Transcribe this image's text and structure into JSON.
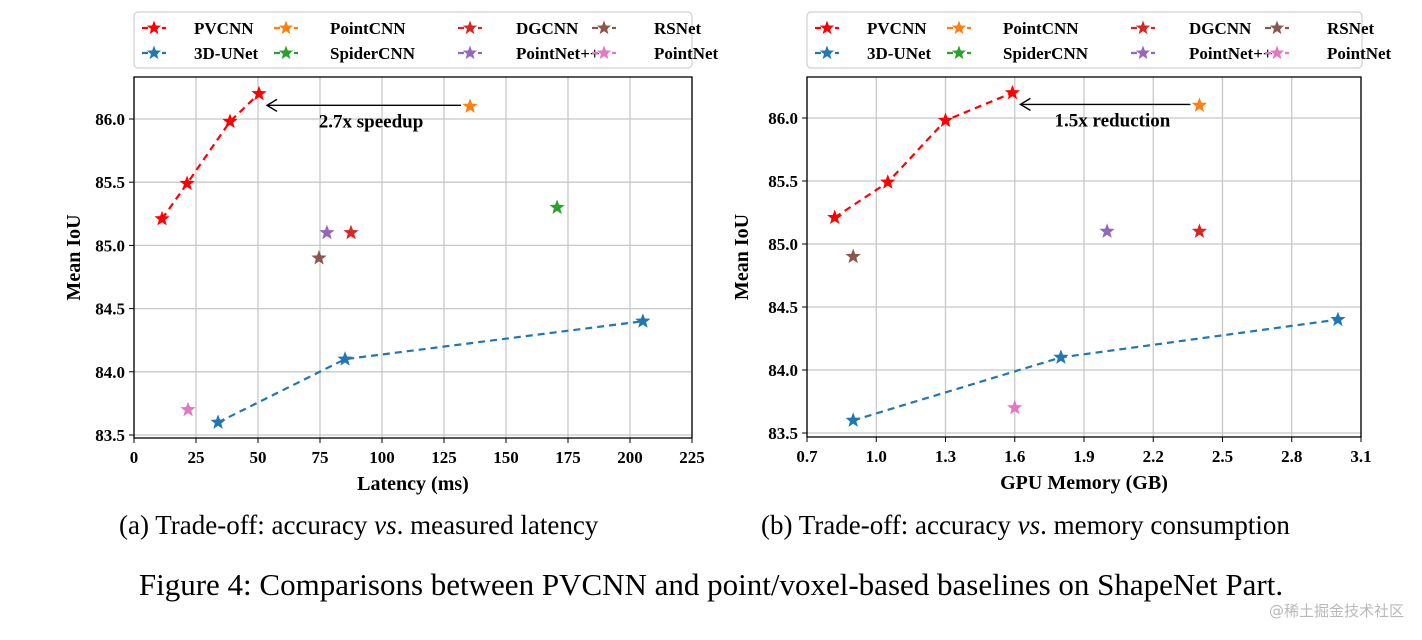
{
  "figure_caption": "Figure 4: Comparisons between PVCNN and point/voxel-based baselines on ShapeNet Part.",
  "watermark": "@稀土掘金技术社区",
  "legend": [
    {
      "name": "PVCNN",
      "color": "#ff0000"
    },
    {
      "name": "PointCNN",
      "color": "#ff7f0e"
    },
    {
      "name": "DGCNN",
      "color": "#d62728"
    },
    {
      "name": "RSNet",
      "color": "#8c564b"
    },
    {
      "name": "3D-UNet",
      "color": "#1f77b4"
    },
    {
      "name": "SpiderCNN",
      "color": "#2ca02c"
    },
    {
      "name": "PointNet++",
      "color": "#9467bd"
    },
    {
      "name": "PointNet",
      "color": "#e377c2"
    }
  ],
  "chart_data": [
    {
      "type": "scatter",
      "panel": "a",
      "caption_prefix": "(a) Trade-off: accuracy ",
      "caption_vs": "vs",
      "caption_suffix": ". measured latency",
      "xlabel": "Latency (ms)",
      "ylabel": "Mean IoU",
      "xlim": [
        0,
        225
      ],
      "ylim": [
        83.45,
        86.3
      ],
      "xticks": [
        0,
        25,
        50,
        75,
        100,
        125,
        150,
        175,
        200,
        225
      ],
      "xtick_labels": [
        "0",
        "25",
        "50",
        "75",
        "100",
        "125",
        "150",
        "175",
        "200",
        "225"
      ],
      "yticks": [
        83.5,
        84.0,
        84.5,
        85.0,
        85.5,
        86.0
      ],
      "ytick_labels": [
        "83.5",
        "84.0",
        "84.5",
        "85.0",
        "85.5",
        "86.0"
      ],
      "grid": true,
      "legend_position": "top",
      "annotation": {
        "text": "2.7x speedup",
        "from": [
          135.5,
          86.1
        ],
        "to": [
          50.4,
          86.1
        ]
      },
      "series": [
        {
          "name": "PVCNN",
          "color": "#ff0000",
          "line": true,
          "points": [
            [
              11.3,
              85.21
            ],
            [
              21.4,
              85.49
            ],
            [
              38.7,
              85.98
            ],
            [
              50.4,
              86.2
            ]
          ]
        },
        {
          "name": "PointCNN",
          "color": "#ff7f0e",
          "line": false,
          "points": [
            [
              135.5,
              86.1
            ]
          ]
        },
        {
          "name": "DGCNN",
          "color": "#d62728",
          "line": false,
          "points": [
            [
              87.5,
              85.1
            ]
          ]
        },
        {
          "name": "RSNet",
          "color": "#8c564b",
          "line": false,
          "points": [
            [
              74.6,
              84.9
            ]
          ]
        },
        {
          "name": "3D-UNet",
          "color": "#1f77b4",
          "line": true,
          "points": [
            [
              33.9,
              83.6
            ],
            [
              85.1,
              84.1
            ],
            [
              205.2,
              84.4
            ]
          ]
        },
        {
          "name": "SpiderCNN",
          "color": "#2ca02c",
          "line": false,
          "points": [
            [
              170.6,
              85.3
            ]
          ]
        },
        {
          "name": "PointNet++",
          "color": "#9467bd",
          "line": false,
          "points": [
            [
              77.8,
              85.1
            ]
          ]
        },
        {
          "name": "PointNet",
          "color": "#e377c2",
          "line": false,
          "points": [
            [
              21.8,
              83.7
            ]
          ]
        }
      ]
    },
    {
      "type": "scatter",
      "panel": "b",
      "caption_prefix": "(b) Trade-off: accuracy ",
      "caption_vs": "vs",
      "caption_suffix": ". memory consumption",
      "xlabel": "GPU Memory (GB)",
      "ylabel": "Mean IoU",
      "xlim": [
        0.7,
        3.1
      ],
      "ylim": [
        83.45,
        86.3
      ],
      "xticks": [
        0.7,
        1.0,
        1.3,
        1.6,
        1.9,
        2.2,
        2.5,
        2.8,
        3.1
      ],
      "xtick_labels": [
        "0.7",
        "1.0",
        "1.3",
        "1.6",
        "1.9",
        "2.2",
        "2.5",
        "2.8",
        "3.1"
      ],
      "yticks": [
        83.5,
        84.0,
        84.5,
        85.0,
        85.5,
        86.0
      ],
      "ytick_labels": [
        "83.5",
        "84.0",
        "84.5",
        "85.0",
        "85.5",
        "86.0"
      ],
      "grid": true,
      "legend_position": "top",
      "annotation": {
        "text": "1.5x reduction",
        "from": [
          2.4,
          86.1
        ],
        "to": [
          1.59,
          86.1
        ]
      },
      "series": [
        {
          "name": "PVCNN",
          "color": "#ff0000",
          "line": true,
          "points": [
            [
              0.82,
              85.21
            ],
            [
              1.05,
              85.49
            ],
            [
              1.3,
              85.98
            ],
            [
              1.59,
              86.2
            ]
          ]
        },
        {
          "name": "PointCNN",
          "color": "#ff7f0e",
          "line": false,
          "points": [
            [
              2.4,
              86.1
            ]
          ]
        },
        {
          "name": "DGCNN",
          "color": "#d62728",
          "line": false,
          "points": [
            [
              2.4,
              85.1
            ]
          ]
        },
        {
          "name": "RSNet",
          "color": "#8c564b",
          "line": false,
          "points": [
            [
              0.9,
              84.9
            ]
          ]
        },
        {
          "name": "3D-UNet",
          "color": "#1f77b4",
          "line": true,
          "points": [
            [
              0.9,
              83.6
            ],
            [
              1.8,
              84.1
            ],
            [
              3.0,
              84.4
            ]
          ]
        },
        {
          "name": "SpiderCNN",
          "color": "#2ca02c",
          "line": false,
          "points": []
        },
        {
          "name": "PointNet++",
          "color": "#9467bd",
          "line": false,
          "points": [
            [
              2.0,
              85.1
            ]
          ]
        },
        {
          "name": "PointNet",
          "color": "#e377c2",
          "line": false,
          "points": [
            [
              1.6,
              83.7
            ]
          ]
        }
      ]
    }
  ]
}
